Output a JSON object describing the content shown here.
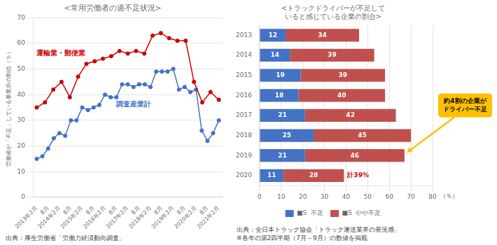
{
  "chart_data": [
    {
      "type": "line",
      "title": "<常用労働者の過不足状況>",
      "ylabel": "労働者が「不足」している事業所の割合（％）",
      "source": "出典：厚生労働省「労働力経済動向調査」",
      "xlim": [
        -2,
        98
      ],
      "xticks": [
        {
          "value": 0,
          "label": "2013年2月"
        },
        {
          "value": 6,
          "label": "8月"
        },
        {
          "value": 12,
          "label": "2014年2月"
        },
        {
          "value": 18,
          "label": "8月"
        },
        {
          "value": 24,
          "label": "2015年2月"
        },
        {
          "value": 30,
          "label": "8月"
        },
        {
          "value": 36,
          "label": "2016年2月"
        },
        {
          "value": 42,
          "label": "8月"
        },
        {
          "value": 48,
          "label": "2017年2月"
        },
        {
          "value": 54,
          "label": "8月"
        },
        {
          "value": 60,
          "label": "2018年2月"
        },
        {
          "value": 66,
          "label": "8月"
        },
        {
          "value": 72,
          "label": "2019年2月"
        },
        {
          "value": 78,
          "label": "8月"
        },
        {
          "value": 84,
          "label": "2020年2月"
        },
        {
          "value": 90,
          "label": "8月"
        },
        {
          "value": 96,
          "label": "2021年2月"
        }
      ],
      "ylim": [
        0,
        70
      ],
      "yticks": [
        0,
        10,
        20,
        30,
        40,
        50,
        60,
        70
      ],
      "grid": "y",
      "marker": "circle",
      "series": [
        {
          "name": "運輸業・郵便業",
          "color": "#cc0000",
          "x": [
            0,
            4.363636,
            8.727273,
            13.090909,
            17.454545,
            21.818182,
            26.181818,
            30.545455,
            34.909091,
            39.272727,
            43.636364,
            48,
            52.363636,
            56.727273,
            61.090909,
            65.454545,
            69.818182,
            74.181818,
            78.545455,
            82.909091,
            87.272727,
            91.636364,
            96
          ],
          "values": [
            35,
            37,
            42,
            45,
            39,
            47,
            52,
            53,
            54,
            55,
            57,
            56,
            57,
            56,
            63,
            64,
            62,
            61,
            61,
            45,
            37,
            41,
            38
          ]
        },
        {
          "name": "調査産業計",
          "color": "#4472c4",
          "x": [
            0,
            3,
            6,
            9,
            12,
            15,
            18,
            21,
            24,
            27,
            30,
            33,
            36,
            39,
            42,
            45,
            48,
            51,
            54,
            57,
            60,
            63,
            66,
            69,
            72,
            75,
            78,
            81,
            84,
            87,
            90,
            93,
            96
          ],
          "values": [
            15,
            16,
            19,
            23,
            25,
            24,
            30,
            30,
            35,
            34,
            35,
            36,
            40,
            39,
            39,
            44,
            44,
            43,
            44,
            44,
            43,
            49,
            49,
            49,
            50,
            42,
            43,
            41,
            42,
            26,
            22,
            25,
            30
          ]
        }
      ]
    },
    {
      "type": "bar",
      "orientation": "horizontal",
      "stacked": true,
      "title": "<トラックドライバーが不足して\nいると感じている企業の割合>",
      "xlabel": "（％）",
      "source": "出典：全日本トラック協会「トラック運送業界の景況感」\n※各年の第2四半期（7月～9月）の数値を掲載",
      "categories": [
        "2013",
        "2014",
        "2015",
        "2016",
        "2017",
        "2018",
        "2019",
        "2020"
      ],
      "xlim": [
        0,
        80
      ],
      "xticks": [
        0,
        10,
        20,
        30,
        40,
        50,
        60,
        70,
        80
      ],
      "grid": "x",
      "legend": "bottom",
      "data_labels": true,
      "series": [
        {
          "name": "■S  不足",
          "color": "#4472c4",
          "values": [
            12,
            14,
            19,
            18,
            21,
            25,
            21,
            11
          ]
        },
        {
          "name": "■S  やや不足",
          "color": "#c0504d",
          "values": [
            34,
            39,
            39,
            40,
            42,
            45,
            46,
            28
          ]
        }
      ],
      "annotations": [
        {
          "text": "約4割の企業が\nドライバー不足",
          "color": "#ffc000",
          "category": "2019",
          "marker": "arrow"
        },
        {
          "text": "計39%",
          "color": "#cc0000",
          "category": "2020"
        }
      ]
    }
  ]
}
